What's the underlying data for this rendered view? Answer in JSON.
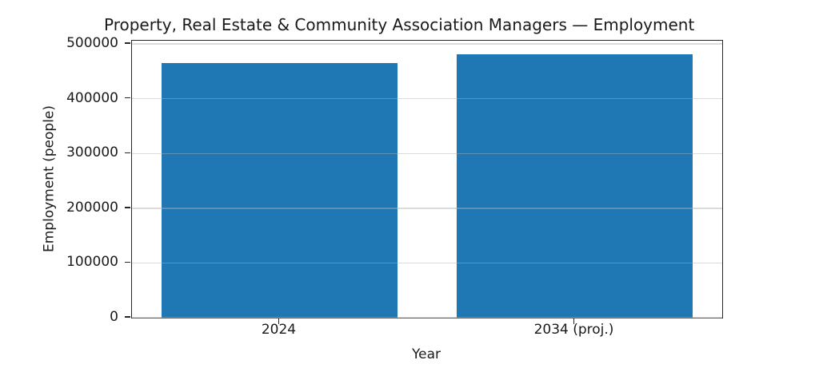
{
  "chart_data": {
    "type": "bar",
    "title": "Property, Real Estate & Community Association Managers — Employment",
    "categories": [
      "2024",
      "2034 (proj.)"
    ],
    "values": [
      466000,
      482000
    ],
    "xlabel": "Year",
    "ylabel": "Employment (people)",
    "ylim": [
      0,
      506100
    ],
    "yticks": [
      0,
      100000,
      200000,
      300000,
      400000,
      500000
    ],
    "grid": true,
    "legend": "none",
    "bar_color": "#1f77b4",
    "grid_color": "#b0b0b0",
    "axis_color": "#262626",
    "text_color": "#1a1a1a"
  }
}
